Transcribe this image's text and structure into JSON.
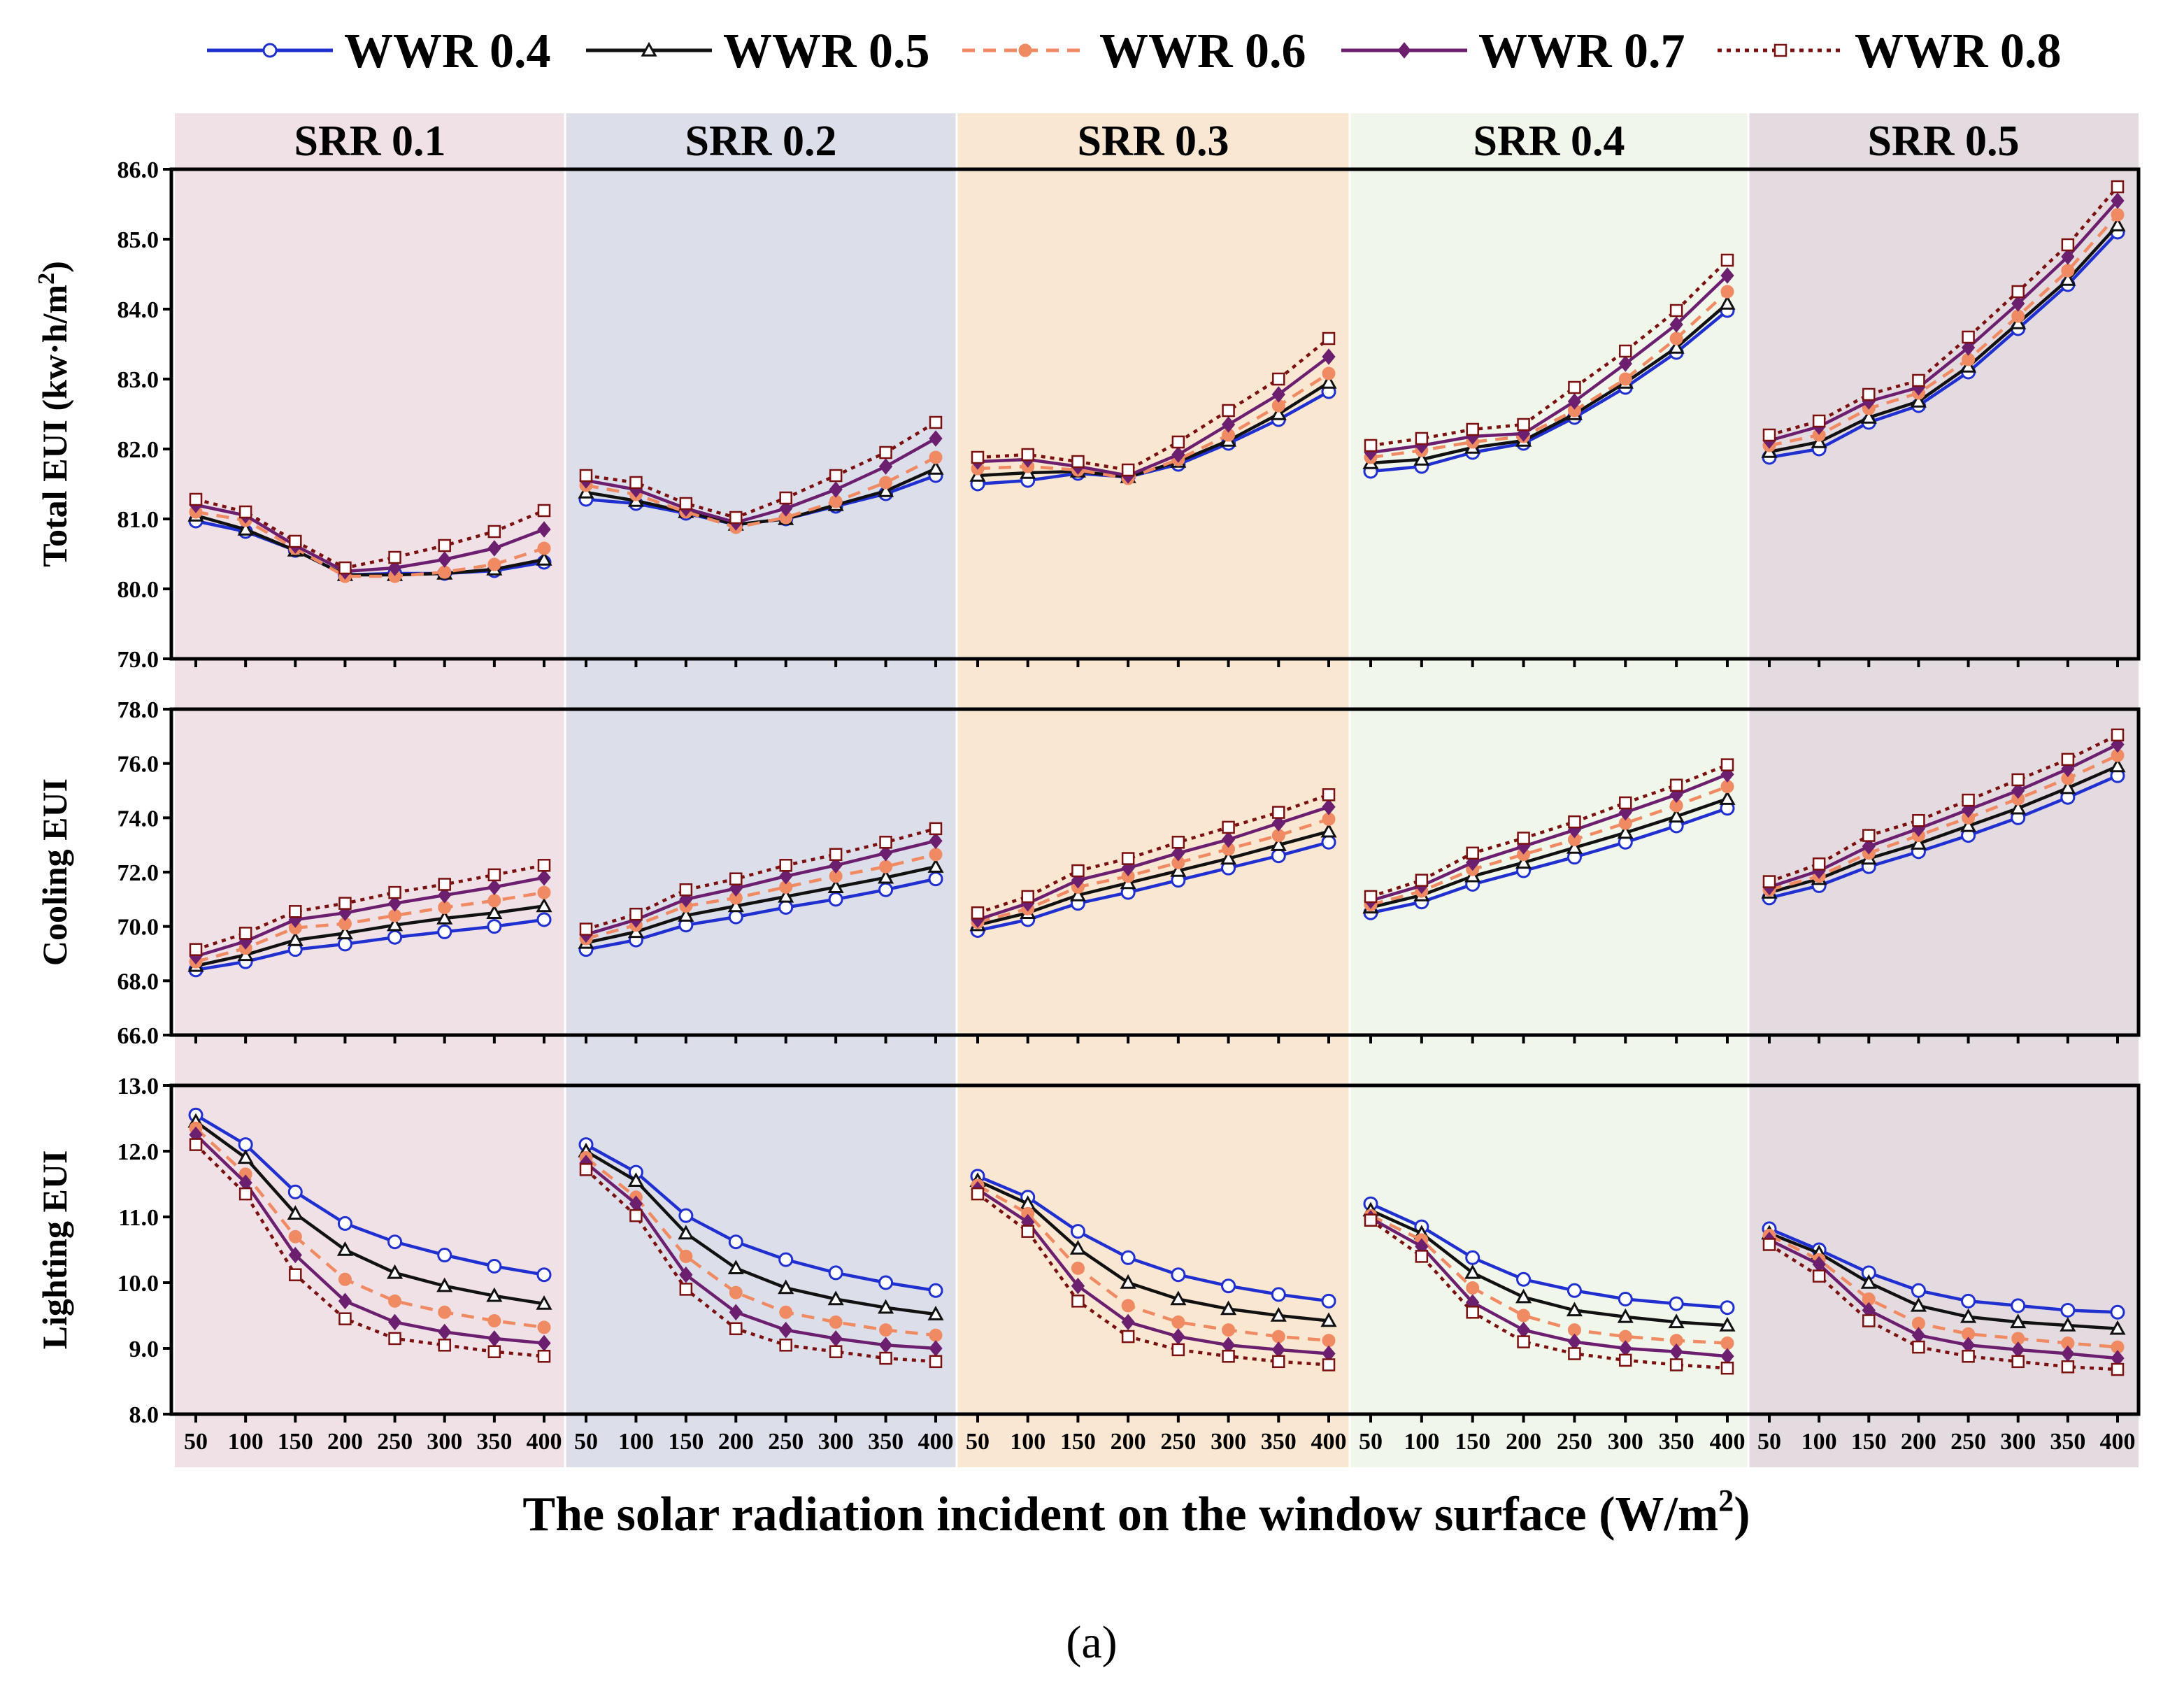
{
  "chart_data": {
    "type": "line",
    "caption": "(a)",
    "xlabel": "The solar radiation incident on the window surface (W/m",
    "xlabel_sup": "2",
    "xlabel_tail": ")",
    "x": [
      50,
      100,
      150,
      200,
      250,
      300,
      350,
      400
    ],
    "groups": [
      {
        "label": "SRR 0.1",
        "color": "#efe1e6"
      },
      {
        "label": "SRR 0.2",
        "color": "#dcdfea"
      },
      {
        "label": "SRR 0.3",
        "color": "#fae7d2"
      },
      {
        "label": "SRR 0.4",
        "color": "#f0f6e9"
      },
      {
        "label": "SRR 0.5",
        "color": "#e4dbe1"
      }
    ],
    "legend": [
      {
        "name": "WWR 0.4",
        "color": "#1f2fd0",
        "dash": "",
        "marker": "circle"
      },
      {
        "name": "WWR 0.5",
        "color": "#111111",
        "dash": "",
        "marker": "triangle"
      },
      {
        "name": "WWR 0.6",
        "color": "#ef8a62",
        "dash": "18,12",
        "marker": "dot"
      },
      {
        "name": "WWR 0.7",
        "color": "#6b1f6e",
        "dash": "",
        "marker": "diamond"
      },
      {
        "name": "WWR 0.8",
        "color": "#7a1010",
        "dash": "6,7",
        "marker": "square"
      }
    ],
    "panels": [
      {
        "ylabel_main": "Total EUI (kw·h/m",
        "ylabel_sup": "2",
        "ylabel_tail": ")",
        "ylim": [
          79.0,
          86.0
        ],
        "yticks": [
          "79.0",
          "80.0",
          "81.0",
          "82.0",
          "83.0",
          "84.0",
          "85.0",
          "86.0"
        ],
        "series": [
          {
            "name": "WWR 0.4",
            "groups": [
              [
                80.97,
                80.82,
                80.55,
                80.2,
                80.22,
                80.22,
                80.26,
                80.38
              ],
              [
                81.28,
                81.22,
                81.08,
                80.92,
                81.0,
                81.18,
                81.36,
                81.62
              ],
              [
                81.5,
                81.55,
                81.65,
                81.6,
                81.78,
                82.08,
                82.42,
                82.82
              ],
              [
                81.68,
                81.75,
                81.95,
                82.08,
                82.45,
                82.88,
                83.38,
                83.98
              ],
              [
                81.88,
                82.0,
                82.38,
                82.62,
                83.1,
                83.72,
                84.35,
                85.1
              ]
            ]
          },
          {
            "name": "WWR 0.5",
            "groups": [
              [
                81.05,
                80.85,
                80.55,
                80.2,
                80.2,
                80.22,
                80.28,
                80.42
              ],
              [
                81.38,
                81.26,
                81.1,
                80.92,
                81.0,
                81.2,
                81.4,
                81.72
              ],
              [
                81.62,
                81.66,
                81.68,
                81.6,
                81.82,
                82.12,
                82.5,
                82.95
              ],
              [
                81.8,
                81.85,
                82.02,
                82.12,
                82.5,
                82.95,
                83.45,
                84.08
              ],
              [
                81.96,
                82.1,
                82.45,
                82.68,
                83.18,
                83.8,
                84.42,
                85.2
              ]
            ]
          },
          {
            "name": "WWR 0.6",
            "groups": [
              [
                81.1,
                80.98,
                80.58,
                80.18,
                80.18,
                80.24,
                80.35,
                80.58
              ],
              [
                81.48,
                81.35,
                81.1,
                80.88,
                81.02,
                81.25,
                81.52,
                81.88
              ],
              [
                81.72,
                81.75,
                81.7,
                81.58,
                81.85,
                82.2,
                82.62,
                83.08
              ],
              [
                81.88,
                81.98,
                82.1,
                82.18,
                82.55,
                83.0,
                83.58,
                84.25
              ],
              [
                82.05,
                82.2,
                82.58,
                82.8,
                83.28,
                83.9,
                84.55,
                85.35
              ]
            ]
          },
          {
            "name": "WWR 0.7",
            "groups": [
              [
                81.2,
                81.05,
                80.62,
                80.25,
                80.3,
                80.42,
                80.58,
                80.85
              ],
              [
                81.55,
                81.42,
                81.15,
                80.95,
                81.15,
                81.42,
                81.75,
                82.15
              ],
              [
                81.82,
                81.85,
                81.75,
                81.62,
                81.92,
                82.35,
                82.78,
                83.32
              ],
              [
                81.95,
                82.05,
                82.18,
                82.22,
                82.68,
                83.22,
                83.78,
                84.48
              ],
              [
                82.12,
                82.32,
                82.68,
                82.88,
                83.45,
                84.08,
                84.75,
                85.55
              ]
            ]
          },
          {
            "name": "WWR 0.8",
            "groups": [
              [
                81.28,
                81.1,
                80.68,
                80.3,
                80.45,
                80.62,
                80.82,
                81.12
              ],
              [
                81.62,
                81.52,
                81.22,
                81.02,
                81.3,
                81.62,
                81.95,
                82.38
              ],
              [
                81.88,
                81.92,
                81.82,
                81.7,
                82.1,
                82.55,
                83.0,
                83.58
              ],
              [
                82.05,
                82.15,
                82.28,
                82.35,
                82.88,
                83.4,
                83.98,
                84.7
              ],
              [
                82.2,
                82.4,
                82.78,
                82.98,
                83.6,
                84.25,
                84.92,
                85.75
              ]
            ]
          }
        ]
      },
      {
        "ylabel_main": "Cooling EUI",
        "ylabel_sup": "",
        "ylabel_tail": "",
        "ylim": [
          66.0,
          78.0
        ],
        "yticks": [
          "66.0",
          "68.0",
          "70.0",
          "72.0",
          "74.0",
          "76.0",
          "78.0"
        ],
        "series": [
          {
            "name": "WWR 0.4",
            "groups": [
              [
                68.4,
                68.7,
                69.15,
                69.35,
                69.6,
                69.8,
                70.0,
                70.25
              ],
              [
                69.15,
                69.5,
                70.05,
                70.35,
                70.7,
                71.0,
                71.35,
                71.75
              ],
              [
                69.85,
                70.25,
                70.85,
                71.25,
                71.7,
                72.15,
                72.6,
                73.1
              ],
              [
                70.5,
                70.9,
                71.55,
                72.05,
                72.55,
                73.1,
                73.7,
                74.35
              ],
              [
                71.05,
                71.5,
                72.2,
                72.75,
                73.35,
                74.0,
                74.75,
                75.55
              ]
            ]
          },
          {
            "name": "WWR 0.5",
            "groups": [
              [
                68.55,
                68.95,
                69.5,
                69.75,
                70.05,
                70.3,
                70.5,
                70.75
              ],
              [
                69.4,
                69.8,
                70.4,
                70.75,
                71.1,
                71.45,
                71.8,
                72.2
              ],
              [
                70.05,
                70.5,
                71.15,
                71.6,
                72.05,
                72.5,
                73.0,
                73.5
              ],
              [
                70.7,
                71.15,
                71.85,
                72.35,
                72.9,
                73.45,
                74.05,
                74.7
              ],
              [
                71.25,
                71.75,
                72.5,
                73.05,
                73.7,
                74.35,
                75.1,
                75.9
              ]
            ]
          },
          {
            "name": "WWR 0.6",
            "groups": [
              [
                68.7,
                69.2,
                69.95,
                70.1,
                70.4,
                70.7,
                70.95,
                71.25
              ],
              [
                69.55,
                70.05,
                70.75,
                71.05,
                71.45,
                71.85,
                72.2,
                72.65
              ],
              [
                70.15,
                70.65,
                71.45,
                71.85,
                72.35,
                72.85,
                73.35,
                73.95
              ],
              [
                70.8,
                71.3,
                72.1,
                72.65,
                73.2,
                73.8,
                74.45,
                75.15
              ],
              [
                71.35,
                71.85,
                72.7,
                73.35,
                74.0,
                74.7,
                75.45,
                76.3
              ]
            ]
          },
          {
            "name": "WWR 0.7",
            "groups": [
              [
                68.9,
                69.45,
                70.25,
                70.5,
                70.85,
                71.15,
                71.45,
                71.8
              ],
              [
                69.7,
                70.25,
                71.0,
                71.4,
                71.85,
                72.25,
                72.7,
                73.15
              ],
              [
                70.25,
                70.85,
                71.7,
                72.15,
                72.7,
                73.2,
                73.8,
                74.4
              ],
              [
                70.95,
                71.5,
                72.35,
                72.95,
                73.55,
                74.2,
                74.85,
                75.6
              ],
              [
                71.45,
                72.05,
                72.95,
                73.6,
                74.3,
                75.0,
                75.8,
                76.7
              ]
            ]
          },
          {
            "name": "WWR 0.8",
            "groups": [
              [
                69.15,
                69.75,
                70.55,
                70.85,
                71.25,
                71.55,
                71.9,
                72.25
              ],
              [
                69.9,
                70.45,
                71.35,
                71.75,
                72.25,
                72.65,
                73.1,
                73.6
              ],
              [
                70.5,
                71.1,
                72.05,
                72.5,
                73.1,
                73.65,
                74.2,
                74.85
              ],
              [
                71.1,
                71.7,
                72.7,
                73.25,
                73.85,
                74.55,
                75.2,
                75.95
              ],
              [
                71.65,
                72.3,
                73.35,
                73.9,
                74.65,
                75.4,
                76.15,
                77.05
              ]
            ]
          }
        ]
      },
      {
        "ylabel_main": "Lighting EUI",
        "ylabel_sup": "",
        "ylabel_tail": "",
        "ylim": [
          8.0,
          13.0
        ],
        "yticks": [
          "8.0",
          "9.0",
          "10.0",
          "11.0",
          "12.0",
          "13.0"
        ],
        "series": [
          {
            "name": "WWR 0.4",
            "groups": [
              [
                12.55,
                12.1,
                11.38,
                10.9,
                10.62,
                10.42,
                10.25,
                10.12
              ],
              [
                12.1,
                11.68,
                11.02,
                10.62,
                10.35,
                10.15,
                10.0,
                9.88
              ],
              [
                11.62,
                11.3,
                10.78,
                10.38,
                10.12,
                9.95,
                9.82,
                9.72
              ],
              [
                11.2,
                10.85,
                10.38,
                10.05,
                9.88,
                9.75,
                9.68,
                9.62
              ],
              [
                10.82,
                10.5,
                10.15,
                9.88,
                9.72,
                9.65,
                9.58,
                9.55
              ]
            ]
          },
          {
            "name": "WWR 0.5",
            "groups": [
              [
                12.45,
                11.9,
                11.05,
                10.5,
                10.15,
                9.95,
                9.8,
                9.68
              ],
              [
                12.0,
                11.55,
                10.75,
                10.22,
                9.92,
                9.75,
                9.62,
                9.52
              ],
              [
                11.55,
                11.2,
                10.52,
                10.0,
                9.75,
                9.6,
                9.5,
                9.42
              ],
              [
                11.1,
                10.75,
                10.15,
                9.78,
                9.58,
                9.48,
                9.4,
                9.35
              ],
              [
                10.75,
                10.45,
                10.0,
                9.65,
                9.48,
                9.4,
                9.35,
                9.3
              ]
            ]
          },
          {
            "name": "WWR 0.6",
            "groups": [
              [
                12.35,
                11.65,
                10.7,
                10.05,
                9.72,
                9.55,
                9.42,
                9.32
              ],
              [
                11.9,
                11.3,
                10.4,
                9.85,
                9.55,
                9.4,
                9.28,
                9.2
              ],
              [
                11.48,
                11.05,
                10.22,
                9.65,
                9.4,
                9.28,
                9.18,
                9.12
              ],
              [
                11.02,
                10.65,
                9.92,
                9.5,
                9.28,
                9.18,
                9.12,
                9.08
              ],
              [
                10.72,
                10.35,
                9.75,
                9.38,
                9.22,
                9.15,
                9.08,
                9.02
              ]
            ]
          },
          {
            "name": "WWR 0.7",
            "groups": [
              [
                12.25,
                11.52,
                10.42,
                9.72,
                9.4,
                9.25,
                9.15,
                9.08
              ],
              [
                11.82,
                11.2,
                10.12,
                9.55,
                9.28,
                9.15,
                9.05,
                9.0
              ],
              [
                11.42,
                10.92,
                9.95,
                9.4,
                9.18,
                9.05,
                8.98,
                8.92
              ],
              [
                10.98,
                10.55,
                9.7,
                9.28,
                9.1,
                9.0,
                8.95,
                8.88
              ],
              [
                10.65,
                10.28,
                9.58,
                9.2,
                9.05,
                8.98,
                8.92,
                8.85
              ]
            ]
          },
          {
            "name": "WWR 0.8",
            "groups": [
              [
                12.1,
                11.35,
                10.12,
                9.45,
                9.15,
                9.05,
                8.95,
                8.88
              ],
              [
                11.72,
                11.02,
                9.9,
                9.3,
                9.05,
                8.95,
                8.85,
                8.8
              ],
              [
                11.35,
                10.78,
                9.72,
                9.18,
                8.98,
                8.88,
                8.8,
                8.75
              ],
              [
                10.95,
                10.4,
                9.55,
                9.1,
                8.92,
                8.82,
                8.75,
                8.7
              ],
              [
                10.58,
                10.1,
                9.42,
                9.02,
                8.88,
                8.8,
                8.72,
                8.68
              ]
            ]
          }
        ]
      }
    ]
  }
}
